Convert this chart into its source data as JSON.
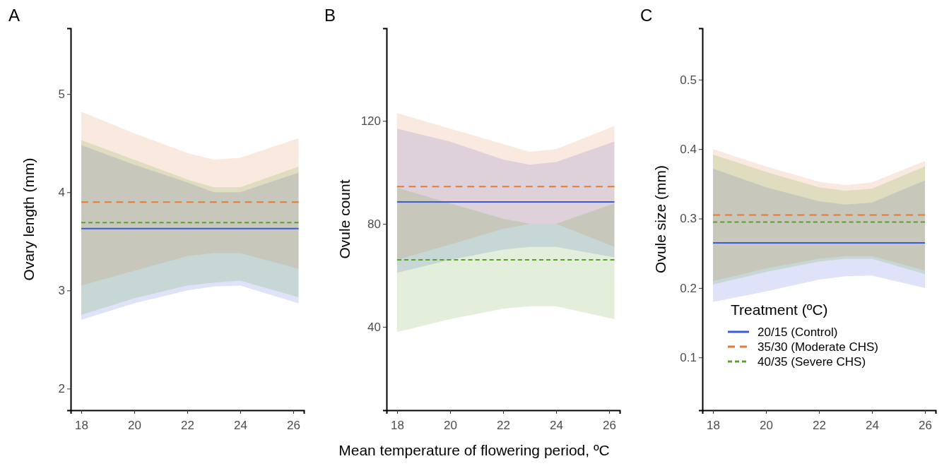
{
  "chart_data": [
    {
      "type": "line",
      "title": "A",
      "ylabel": "Ovary length (mm)",
      "x": [
        18,
        20,
        22,
        23,
        24,
        26.2
      ],
      "xlim": [
        17.6,
        26.4
      ],
      "xticks": [
        18,
        20,
        22,
        24,
        26
      ],
      "ylim": [
        1.78,
        5.67
      ],
      "yticks": [
        2,
        3,
        4,
        5
      ],
      "grid": false,
      "series": [
        {
          "color": "#3b5bdb",
          "line_style": "solid",
          "values": [
            3.63,
            3.63,
            3.63,
            3.63,
            3.63,
            3.63
          ],
          "lower": [
            2.7,
            2.87,
            3.0,
            3.04,
            3.05,
            2.87
          ],
          "upper": [
            4.48,
            4.28,
            4.1,
            4.0,
            4.0,
            4.2
          ]
        },
        {
          "color": "#e07b39",
          "line_style": "dashed",
          "values": [
            3.9,
            3.9,
            3.9,
            3.9,
            3.9,
            3.9
          ],
          "lower": [
            3.05,
            3.2,
            3.35,
            3.38,
            3.38,
            3.22
          ],
          "upper": [
            4.82,
            4.6,
            4.4,
            4.33,
            4.35,
            4.55
          ]
        },
        {
          "color": "#5aa02c",
          "line_style": "dotted",
          "values": [
            3.69,
            3.69,
            3.69,
            3.69,
            3.69,
            3.69
          ],
          "lower": [
            2.75,
            2.92,
            3.05,
            3.08,
            3.1,
            2.93
          ],
          "upper": [
            4.53,
            4.33,
            4.13,
            4.05,
            4.05,
            4.26
          ]
        }
      ]
    },
    {
      "type": "line",
      "title": "B",
      "ylabel": "Ovule count",
      "xlabel": "Mean temperature of flowering period, ºC",
      "x": [
        18,
        20,
        22,
        23,
        24,
        26.2
      ],
      "xlim": [
        17.6,
        26.4
      ],
      "xticks": [
        18,
        20,
        22,
        24,
        26
      ],
      "ylim": [
        7.6,
        156
      ],
      "yticks": [
        40,
        80,
        120
      ],
      "grid": false,
      "series": [
        {
          "color": "#3b5bdb",
          "line_style": "solid",
          "values": [
            88.5,
            88.5,
            88.5,
            88.5,
            88.5,
            88.5
          ],
          "lower": [
            61,
            66,
            70,
            71,
            71,
            67
          ],
          "upper": [
            117,
            112,
            105,
            103,
            104,
            112
          ]
        },
        {
          "color": "#e07b39",
          "line_style": "dashed",
          "values": [
            94.5,
            94.5,
            94.5,
            94.5,
            94.5,
            94.5
          ],
          "lower": [
            66,
            72,
            78,
            80,
            80,
            71
          ],
          "upper": [
            123,
            117,
            111,
            108,
            109,
            118
          ]
        },
        {
          "color": "#5aa02c",
          "line_style": "dotted",
          "values": [
            66,
            66,
            66,
            66,
            66,
            66
          ],
          "lower": [
            38,
            43,
            47,
            48,
            48,
            43
          ],
          "upper": [
            94,
            88,
            82,
            80,
            80,
            88
          ]
        }
      ]
    },
    {
      "type": "line",
      "title": "C",
      "ylabel": "Ovule size (mm)",
      "legend_title": "Treatment (ºC)",
      "legend": "bottom",
      "x": [
        18,
        20,
        22,
        23,
        24,
        26
      ],
      "xlim": [
        17.6,
        26.4
      ],
      "xticks": [
        18,
        20,
        22,
        24,
        26
      ],
      "ylim": [
        0.024,
        0.574
      ],
      "yticks": [
        0.1,
        0.2,
        0.3,
        0.4,
        0.5
      ],
      "grid": false,
      "series": [
        {
          "name": "20/15 (Control)",
          "color": "#3b5bdb",
          "line_style": "solid",
          "values": [
            0.265,
            0.265,
            0.265,
            0.265,
            0.265,
            0.265
          ],
          "lower": [
            0.18,
            0.195,
            0.212,
            0.217,
            0.218,
            0.2
          ],
          "upper": [
            0.372,
            0.345,
            0.325,
            0.32,
            0.323,
            0.355
          ]
        },
        {
          "name": "35/30 (Moderate CHS)",
          "color": "#e07b39",
          "line_style": "dashed",
          "values": [
            0.305,
            0.305,
            0.305,
            0.305,
            0.305,
            0.305
          ],
          "lower": [
            0.21,
            0.228,
            0.242,
            0.246,
            0.246,
            0.225
          ],
          "upper": [
            0.4,
            0.375,
            0.353,
            0.348,
            0.352,
            0.383
          ]
        },
        {
          "name": "40/35 (Severe CHS)",
          "color": "#5aa02c",
          "line_style": "dotted",
          "values": [
            0.295,
            0.295,
            0.295,
            0.295,
            0.295,
            0.295
          ],
          "lower": [
            0.205,
            0.223,
            0.238,
            0.242,
            0.242,
            0.22
          ],
          "upper": [
            0.392,
            0.367,
            0.345,
            0.34,
            0.343,
            0.375
          ]
        }
      ]
    }
  ]
}
